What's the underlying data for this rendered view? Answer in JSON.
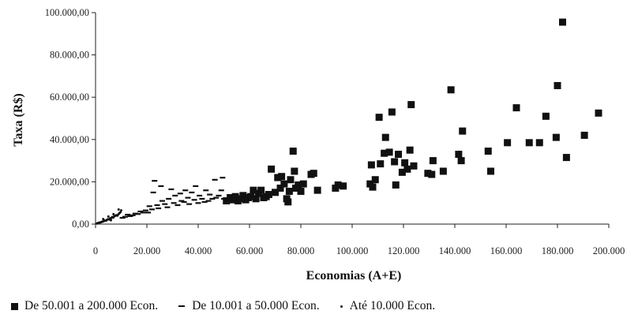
{
  "chart_data": {
    "type": "scatter",
    "title": "",
    "xlabel": "Economias (A+E)",
    "ylabel": "Taxa (R$)",
    "xlim": [
      0,
      200000
    ],
    "ylim": [
      0,
      100000
    ],
    "x_ticks": [
      0,
      20000,
      40000,
      60000,
      80000,
      100000,
      120000,
      140000,
      160000,
      180000,
      200000
    ],
    "x_tick_labels": [
      "0",
      "20.000",
      "40.000",
      "60.000",
      "80.000",
      "100.000",
      "120.000",
      "140.000",
      "160.000",
      "180.000",
      "200.000"
    ],
    "y_ticks": [
      0,
      20000,
      40000,
      60000,
      80000,
      100000
    ],
    "y_tick_labels": [
      "0,00",
      "20.000,00",
      "40.000,00",
      "60.000,00",
      "80.000,00",
      "100.000,00"
    ],
    "grid": false,
    "legend_position": "bottom",
    "series": [
      {
        "name": "De 50.001 a 200.000 Econ.",
        "marker": "square",
        "color": "#111111",
        "points": [
          [
            51000,
            11000
          ],
          [
            52500,
            12500
          ],
          [
            53500,
            11500
          ],
          [
            54500,
            13000
          ],
          [
            55500,
            11000
          ],
          [
            56500,
            12000
          ],
          [
            57500,
            13500
          ],
          [
            58500,
            11500
          ],
          [
            59500,
            12500
          ],
          [
            60500,
            13000
          ],
          [
            61500,
            16000
          ],
          [
            62500,
            12000
          ],
          [
            63500,
            14500
          ],
          [
            64500,
            16000
          ],
          [
            65500,
            12500
          ],
          [
            66500,
            13000
          ],
          [
            67500,
            14000
          ],
          [
            68500,
            26000
          ],
          [
            70000,
            15000
          ],
          [
            71000,
            22000
          ],
          [
            72000,
            17000
          ],
          [
            72500,
            22500
          ],
          [
            73500,
            19000
          ],
          [
            74500,
            12000
          ],
          [
            75000,
            10500
          ],
          [
            75500,
            15500
          ],
          [
            76000,
            21000
          ],
          [
            77000,
            34500
          ],
          [
            77500,
            25000
          ],
          [
            78000,
            17000
          ],
          [
            79000,
            18500
          ],
          [
            80000,
            15500
          ],
          [
            81000,
            19000
          ],
          [
            84000,
            23500
          ],
          [
            85000,
            24000
          ],
          [
            86500,
            16000
          ],
          [
            93500,
            17000
          ],
          [
            94500,
            18500
          ],
          [
            96500,
            18000
          ],
          [
            107000,
            19000
          ],
          [
            107500,
            28000
          ],
          [
            108000,
            17500
          ],
          [
            109000,
            21000
          ],
          [
            110500,
            50500
          ],
          [
            111000,
            28500
          ],
          [
            112500,
            33500
          ],
          [
            113000,
            41000
          ],
          [
            114500,
            34000
          ],
          [
            115500,
            53000
          ],
          [
            116500,
            29500
          ],
          [
            117000,
            18500
          ],
          [
            118000,
            33000
          ],
          [
            119500,
            24500
          ],
          [
            120500,
            29000
          ],
          [
            121500,
            26000
          ],
          [
            122500,
            35000
          ],
          [
            123000,
            56500
          ],
          [
            124000,
            27500
          ],
          [
            129500,
            24000
          ],
          [
            131000,
            23500
          ],
          [
            131500,
            30000
          ],
          [
            135500,
            25000
          ],
          [
            138500,
            63500
          ],
          [
            141500,
            33000
          ],
          [
            142500,
            30000
          ],
          [
            143000,
            44000
          ],
          [
            153000,
            34500
          ],
          [
            154000,
            25000
          ],
          [
            160500,
            38500
          ],
          [
            164000,
            55000
          ],
          [
            169000,
            38500
          ],
          [
            173000,
            38500
          ],
          [
            175500,
            51000
          ],
          [
            179500,
            41000
          ],
          [
            180000,
            65500
          ],
          [
            182000,
            95500
          ],
          [
            183500,
            31500
          ],
          [
            190500,
            42000
          ],
          [
            196000,
            52500
          ]
        ]
      },
      {
        "name": "De 10.001 a 50.000 Econ.",
        "marker": "dash",
        "color": "#111111",
        "points": [
          [
            10500,
            3000
          ],
          [
            11500,
            3500
          ],
          [
            12500,
            4500
          ],
          [
            13500,
            3800
          ],
          [
            14500,
            4200
          ],
          [
            15500,
            5000
          ],
          [
            16500,
            4800
          ],
          [
            17500,
            6000
          ],
          [
            18500,
            5500
          ],
          [
            19500,
            6500
          ],
          [
            20500,
            5500
          ],
          [
            21000,
            8500
          ],
          [
            22000,
            7000
          ],
          [
            22500,
            15000
          ],
          [
            23000,
            20500
          ],
          [
            24000,
            9000
          ],
          [
            24500,
            7500
          ],
          [
            25500,
            18000
          ],
          [
            26000,
            11000
          ],
          [
            27000,
            9500
          ],
          [
            28000,
            8000
          ],
          [
            28500,
            12000
          ],
          [
            29500,
            16500
          ],
          [
            30500,
            10000
          ],
          [
            31000,
            13500
          ],
          [
            32000,
            9000
          ],
          [
            33000,
            14500
          ],
          [
            33500,
            11000
          ],
          [
            34500,
            10500
          ],
          [
            35000,
            16000
          ],
          [
            36000,
            12500
          ],
          [
            36500,
            9500
          ],
          [
            37500,
            15000
          ],
          [
            38500,
            11500
          ],
          [
            39000,
            18000
          ],
          [
            40000,
            10000
          ],
          [
            40500,
            13500
          ],
          [
            41500,
            12000
          ],
          [
            42500,
            10500
          ],
          [
            43000,
            16000
          ],
          [
            44000,
            11000
          ],
          [
            44500,
            14000
          ],
          [
            45500,
            12000
          ],
          [
            46500,
            21000
          ],
          [
            47000,
            12500
          ],
          [
            48000,
            13500
          ],
          [
            49000,
            16000
          ],
          [
            49500,
            22000
          ],
          [
            50000,
            12000
          ]
        ]
      },
      {
        "name": "Até 10.000 Econ.",
        "marker": "dot",
        "color": "#111111",
        "points": [
          [
            500,
            300
          ],
          [
            900,
            500
          ],
          [
            1300,
            600
          ],
          [
            1700,
            800
          ],
          [
            2100,
            900
          ],
          [
            2500,
            1100
          ],
          [
            2900,
            1200
          ],
          [
            3300,
            1500
          ],
          [
            3700,
            1700
          ],
          [
            4100,
            1600
          ],
          [
            4500,
            2100
          ],
          [
            4900,
            2300
          ],
          [
            5300,
            2200
          ],
          [
            5700,
            2700
          ],
          [
            6100,
            2900
          ],
          [
            6500,
            3300
          ],
          [
            6900,
            3100
          ],
          [
            7300,
            3700
          ],
          [
            7700,
            3900
          ],
          [
            8100,
            4200
          ],
          [
            8500,
            4000
          ],
          [
            8900,
            4600
          ],
          [
            9300,
            5200
          ],
          [
            9700,
            5600
          ],
          [
            10000,
            6500
          ],
          [
            3000,
            2400
          ],
          [
            5000,
            3600
          ],
          [
            7000,
            4700
          ],
          [
            9000,
            6900
          ],
          [
            6000,
            1800
          ]
        ]
      }
    ]
  }
}
